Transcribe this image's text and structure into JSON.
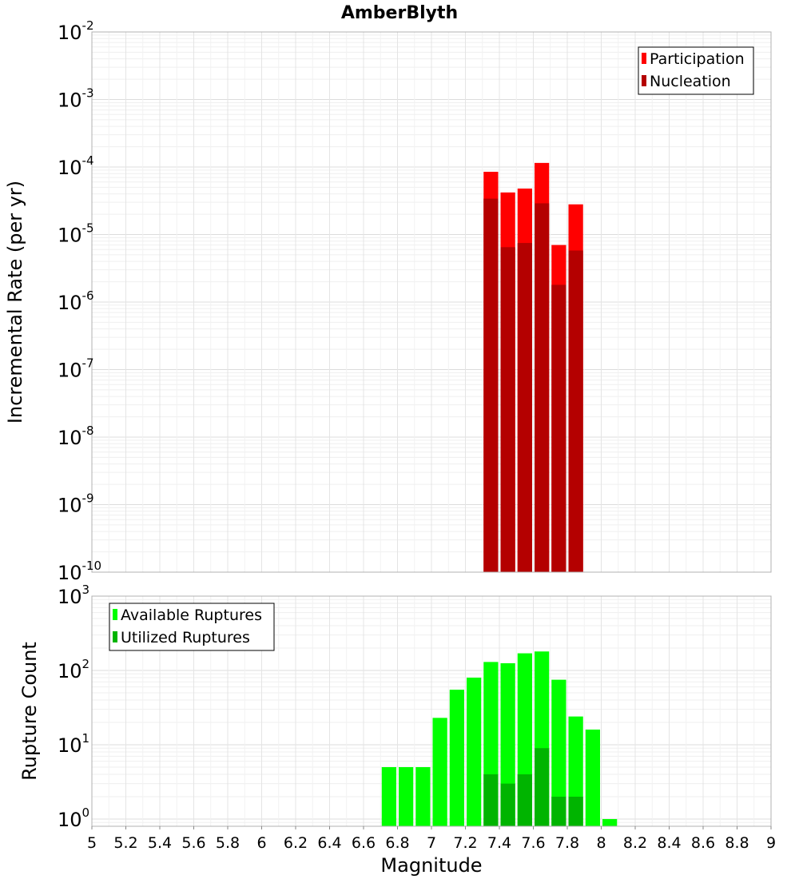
{
  "chart_data": [
    {
      "type": "bar",
      "title": "AmberBlyth",
      "xlabel": "",
      "ylabel": "Incremental Rate (per yr)",
      "xlim": [
        5,
        9
      ],
      "ylim": [
        1e-10,
        0.01
      ],
      "yscale": "log",
      "yticks": [
        {
          "base": "10",
          "exp": "-10"
        },
        {
          "base": "10",
          "exp": "-9"
        },
        {
          "base": "10",
          "exp": "-8"
        },
        {
          "base": "10",
          "exp": "-7"
        },
        {
          "base": "10",
          "exp": "-6"
        },
        {
          "base": "10",
          "exp": "-5"
        },
        {
          "base": "10",
          "exp": "-4"
        },
        {
          "base": "10",
          "exp": "-3"
        },
        {
          "base": "10",
          "exp": "-2"
        }
      ],
      "bin_width": 0.1,
      "grid": true,
      "legend_position": "top-right",
      "series": [
        {
          "name": "Participation",
          "color": "#ff0000",
          "x": [
            7.35,
            7.45,
            7.55,
            7.65,
            7.75,
            7.85
          ],
          "values": [
            8.5e-05,
            4.2e-05,
            4.8e-05,
            0.000115,
            7e-06,
            2.8e-05
          ]
        },
        {
          "name": "Nucleation",
          "color": "#b40000",
          "x": [
            7.35,
            7.45,
            7.55,
            7.65,
            7.75,
            7.85
          ],
          "values": [
            3.4e-05,
            6.5e-06,
            7.5e-06,
            2.9e-05,
            1.8e-06,
            5.8e-06
          ]
        }
      ]
    },
    {
      "type": "bar",
      "title": "",
      "xlabel": "Magnitude",
      "ylabel": "Rupture Count",
      "xlim": [
        5,
        9
      ],
      "ylim": [
        0.8,
        1000
      ],
      "yscale": "log",
      "yticks": [
        {
          "base": "10",
          "exp": "0"
        },
        {
          "base": "10",
          "exp": "1"
        },
        {
          "base": "10",
          "exp": "2"
        },
        {
          "base": "10",
          "exp": "3"
        }
      ],
      "xticks": [
        "5",
        "5.2",
        "5.4",
        "5.6",
        "5.8",
        "6",
        "6.2",
        "6.4",
        "6.6",
        "6.8",
        "7",
        "7.2",
        "7.4",
        "7.6",
        "7.8",
        "8",
        "8.2",
        "8.4",
        "8.6",
        "8.8",
        "9"
      ],
      "bin_width": 0.1,
      "grid": true,
      "legend_position": "top-left",
      "series": [
        {
          "name": "Available Ruptures",
          "color": "#00ff00",
          "x": [
            6.75,
            6.85,
            6.95,
            7.05,
            7.15,
            7.25,
            7.35,
            7.45,
            7.55,
            7.65,
            7.75,
            7.85,
            7.95,
            8.05
          ],
          "values": [
            5,
            5,
            5,
            23,
            55,
            80,
            130,
            125,
            170,
            180,
            75,
            24,
            16,
            1
          ]
        },
        {
          "name": "Utilized Ruptures",
          "color": "#00b400",
          "x": [
            7.35,
            7.45,
            7.55,
            7.65,
            7.75,
            7.85
          ],
          "values": [
            4,
            3,
            4,
            9,
            2,
            2
          ]
        }
      ]
    }
  ]
}
